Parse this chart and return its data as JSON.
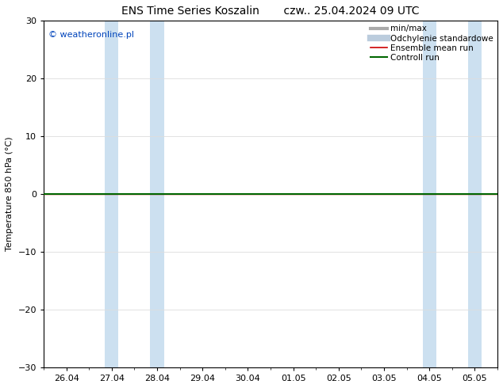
{
  "title_left": "ENS Time Series Koszalin",
  "title_right": "czw.. 25.04.2024 09 UTC",
  "ylabel": "Temperature 850 hPa (°C)",
  "watermark": "© weatheronline.pl",
  "watermark_color": "#0044bb",
  "ylim": [
    -30,
    30
  ],
  "yticks": [
    -30,
    -20,
    -10,
    0,
    10,
    20,
    30
  ],
  "x_labels": [
    "26.04",
    "27.04",
    "28.04",
    "29.04",
    "30.04",
    "01.05",
    "02.05",
    "03.05",
    "04.05",
    "05.05"
  ],
  "x_positions": [
    0,
    1,
    2,
    3,
    4,
    5,
    6,
    7,
    8,
    9
  ],
  "xlim_left": -0.5,
  "xlim_right": 9.5,
  "shaded_bands": [
    {
      "x_start": 0.85,
      "x_end": 1.15,
      "color": "#cce0f0"
    },
    {
      "x_start": 1.85,
      "x_end": 2.15,
      "color": "#cce0f0"
    },
    {
      "x_start": 7.85,
      "x_end": 8.15,
      "color": "#cce0f0"
    },
    {
      "x_start": 8.85,
      "x_end": 9.15,
      "color": "#cce0f0"
    }
  ],
  "flat_line_y": 0.0,
  "control_run_color": "#006600",
  "control_run_lw": 1.5,
  "ensemble_mean_color": "#cc0000",
  "ensemble_mean_lw": 1.0,
  "background_color": "#ffffff",
  "plot_bg_color": "#ffffff",
  "legend_items": [
    {
      "label": "min/max",
      "color": "#aaaaaa",
      "lw": 3.0,
      "style": "solid"
    },
    {
      "label": "Odchylenie standardowe",
      "color": "#bbccdd",
      "lw": 6.0,
      "style": "solid"
    },
    {
      "label": "Ensemble mean run",
      "color": "#cc0000",
      "lw": 1.2,
      "style": "solid"
    },
    {
      "label": "Controll run",
      "color": "#006600",
      "lw": 1.5,
      "style": "solid"
    }
  ],
  "grid_color": "#dddddd",
  "spine_color": "#000000",
  "tick_color": "#000000",
  "font_size_title": 10,
  "font_size_legend": 7.5,
  "font_size_ticks": 8,
  "font_size_ylabel": 8,
  "font_size_watermark": 8
}
